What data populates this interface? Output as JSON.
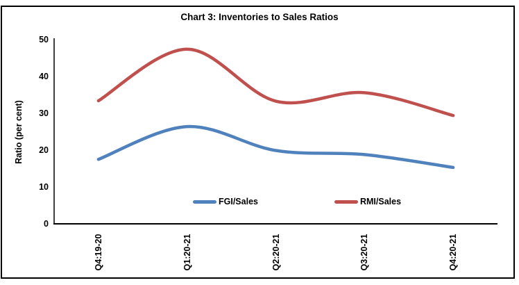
{
  "chart": {
    "title": "Chart 3: Inventories to Sales Ratios",
    "ylabel": "Ratio (per cent)"
  },
  "chart_data": {
    "type": "line",
    "title": "Chart 3: Inventories to Sales Ratios",
    "categories": [
      "Q4:19-20",
      "Q1:20-21",
      "Q2:20-21",
      "Q3:20-21",
      "Q4:20-21"
    ],
    "series": [
      {
        "name": "FGI/Sales",
        "color": "#4F81BD",
        "values": [
          17.5,
          26.4,
          19.9,
          18.8,
          15.3
        ]
      },
      {
        "name": "RMI/Sales",
        "color": "#C0504D",
        "values": [
          33.4,
          47.4,
          33.3,
          35.6,
          29.4
        ]
      }
    ],
    "xlabel": "",
    "ylabel": "Ratio (per cent)",
    "ylim": [
      0,
      50
    ],
    "yticks": [
      0,
      10,
      20,
      30,
      40,
      50
    ],
    "grid": false,
    "legend_position": "bottom-inside",
    "smooth": true,
    "axis_color": "#000000",
    "background_color": "#FFFFFF"
  }
}
